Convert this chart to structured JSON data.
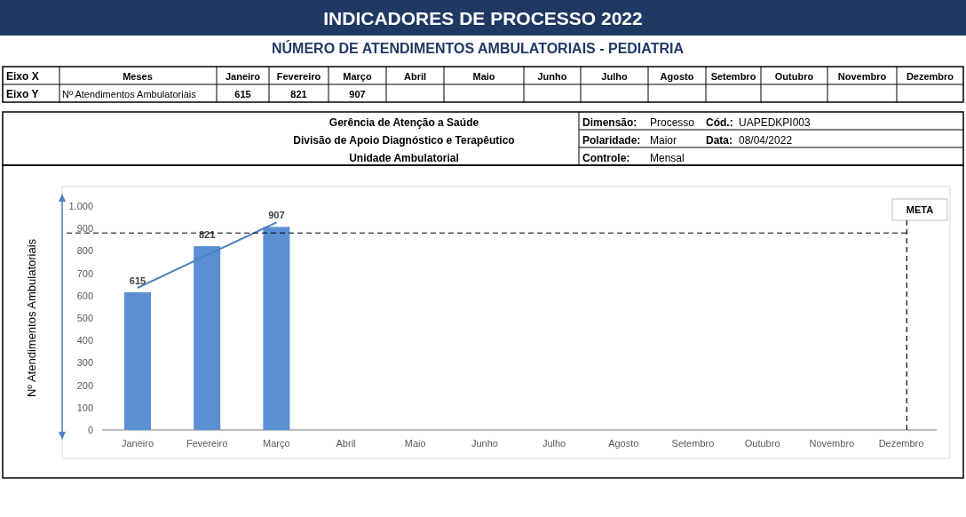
{
  "chart_data": {
    "type": "bar",
    "title": "INDICADORES DE PROCESSO 2022",
    "subtitle": "NÚMERO DE ATENDIMENTOS AMBULATORIAIS -  PEDIATRIA",
    "ylabel": "Nº Atendimentos Ambulatoriais",
    "categories": [
      "Janeiro",
      "Fevereiro",
      "Março",
      "Abril",
      "Maio",
      "Junho",
      "Julho",
      "Agosto",
      "Setembro",
      "Outubro",
      "Novembro",
      "Dezembro"
    ],
    "series": [
      {
        "color": "#5b8fd3",
        "values": [
          615,
          821,
          907,
          null,
          null,
          null,
          null,
          null,
          null,
          null,
          null,
          null
        ],
        "value_labels": [
          "615",
          "821",
          "907",
          null,
          null,
          null,
          null,
          null,
          null,
          null,
          null,
          null
        ]
      },
      {
        "type": "line",
        "color": "#4f81bd",
        "values": [
          635,
          781,
          927,
          null,
          null,
          null,
          null,
          null,
          null,
          null,
          null,
          null
        ]
      }
    ],
    "ylim": [
      0,
      1000
    ],
    "yticks": [
      0,
      100,
      200,
      300,
      400,
      500,
      600,
      700,
      800,
      900,
      {
        "value": 1000,
        "label": "1.000"
      }
    ],
    "ref_lines": [
      {
        "axis": "y",
        "value": 880,
        "label": "META",
        "color": "#000000",
        "line_style": "dashed"
      },
      {
        "axis": "x",
        "value": "Dezembro",
        "color": "#000000",
        "line_style": "dashed"
      }
    ],
    "grid": false,
    "annotations": [
      "Eixo X",
      "Meses",
      "Eixo Y",
      "Gerência de Atenção a Saúde",
      "Divisão de Apoio Diagnóstico e Terapêutico",
      "Unidade Ambulatorial",
      "Dimensão:",
      "Processo",
      "Cód.:",
      "UAPEDKPI003",
      "Polaridade:",
      "Maior",
      "Data:",
      "08/04/2022",
      "Controle:",
      "Mensal"
    ]
  }
}
